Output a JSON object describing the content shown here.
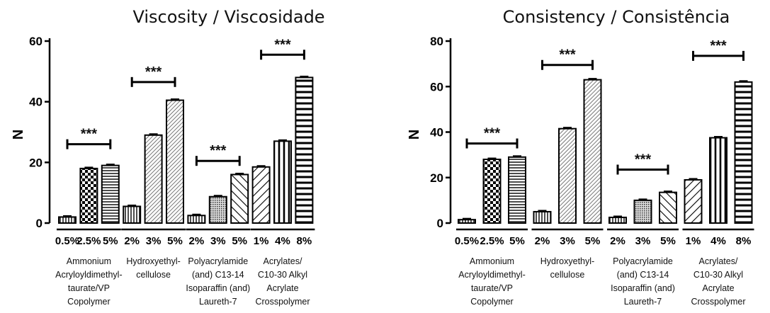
{
  "chart_data": [
    {
      "type": "bar",
      "title": "Viscosity / Viscosidade",
      "ylabel": "N",
      "ylim": [
        0,
        60
      ],
      "yticks": [
        0,
        20,
        40,
        60
      ],
      "grid": false,
      "categories": [
        "0.5%",
        "2.5%",
        "5%",
        "2%",
        "3%",
        "5%",
        "2%",
        "3%",
        "5%",
        "1%",
        "4%",
        "8%"
      ],
      "values": [
        2,
        18,
        19,
        5.5,
        29,
        40.5,
        2.5,
        8.7,
        16,
        18.5,
        27,
        48
      ],
      "patterns": [
        "vlines",
        "checker",
        "hlines",
        "vlines",
        "dense-diag",
        "dense-diag",
        "vlines",
        "dots",
        "diag-back",
        "diag",
        "vlines-bold",
        "hlines-bold"
      ],
      "groups": [
        {
          "label": [
            "Ammonium",
            "Acryloyldimethyl-",
            "taurate/VP",
            "Copolymer"
          ],
          "bars": [
            0,
            1,
            2
          ],
          "significance": "***",
          "bracket_y": 26
        },
        {
          "label": [
            "Hydroxyethyl-",
            "cellulose"
          ],
          "bars": [
            3,
            4,
            5
          ],
          "significance": "***",
          "bracket_y": 46.5
        },
        {
          "label": [
            "Polyacrylamide",
            "(and) C13-14",
            "Isoparaffin (and)",
            "Laureth-7"
          ],
          "bars": [
            6,
            7,
            8
          ],
          "significance": "***",
          "bracket_y": 20.5
        },
        {
          "label": [
            "Acrylates/",
            "C10-30 Alkyl",
            "Acrylate",
            "Crosspolymer"
          ],
          "bars": [
            9,
            10,
            11
          ],
          "significance": "***",
          "bracket_y": 55.5
        }
      ]
    },
    {
      "type": "bar",
      "title": "Consistency / Consistência",
      "ylabel": "N",
      "ylim": [
        0,
        80
      ],
      "yticks": [
        0,
        20,
        40,
        60,
        80
      ],
      "grid": false,
      "categories": [
        "0.5%",
        "2.5%",
        "5%",
        "2%",
        "3%",
        "5%",
        "2%",
        "3%",
        "5%",
        "1%",
        "4%",
        "8%"
      ],
      "values": [
        1.5,
        28,
        29,
        5,
        41.5,
        63,
        2.5,
        10,
        13.5,
        19,
        37.5,
        62
      ],
      "patterns": [
        "vlines",
        "checker",
        "hlines",
        "vlines",
        "dense-diag",
        "dense-diag",
        "vlines",
        "dots",
        "diag-back",
        "diag",
        "vlines-bold",
        "hlines-bold"
      ],
      "groups": [
        {
          "label": [
            "Ammonium",
            "Acryloyldimethyl-",
            "taurate/VP",
            "Copolymer"
          ],
          "bars": [
            0,
            1,
            2
          ],
          "significance": "***",
          "bracket_y": 35
        },
        {
          "label": [
            "Hydroxyethyl-",
            "cellulose"
          ],
          "bars": [
            3,
            4,
            5
          ],
          "significance": "***",
          "bracket_y": 69.5
        },
        {
          "label": [
            "Polyacrylamide",
            "(and) C13-14",
            "Isoparaffin (and)",
            "Laureth-7"
          ],
          "bars": [
            6,
            7,
            8
          ],
          "significance": "***",
          "bracket_y": 23.5
        },
        {
          "label": [
            "Acrylates/",
            "C10-30 Alkyl",
            "Acrylate",
            "Crosspolymer"
          ],
          "bars": [
            9,
            10,
            11
          ],
          "significance": "***",
          "bracket_y": 73.5
        }
      ]
    }
  ]
}
